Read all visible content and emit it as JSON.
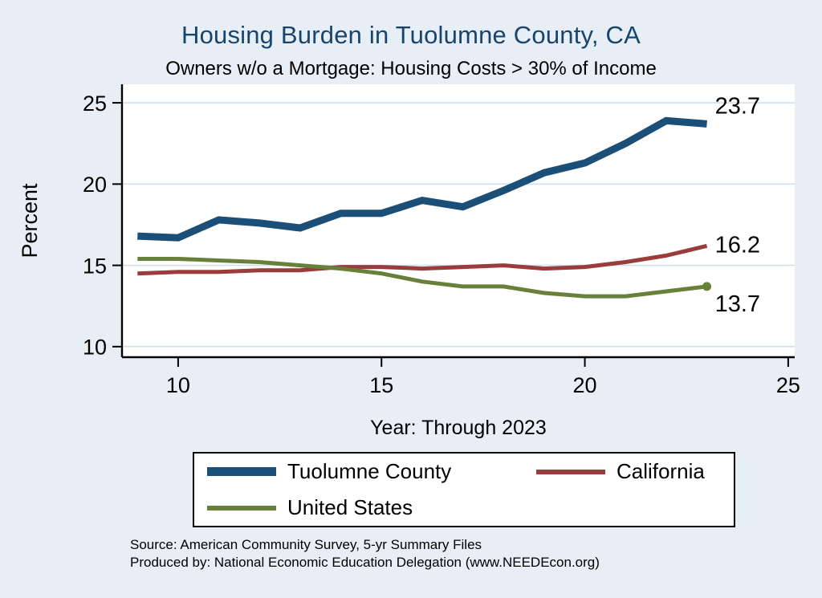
{
  "title": "Housing Burden in Tuolumne County, CA",
  "subtitle": "Owners w/o a Mortgage: Housing Costs > 30% of Income",
  "xlabel": "Year: Through 2023",
  "ylabel": "Percent",
  "notes": {
    "source_line": "Source: American Community Survey, 5-yr Summary Files",
    "produced_line": "Produced by: National Economic Education Delegation (www.NEEDEcon.org)"
  },
  "colors": {
    "title": "#17456e",
    "tuolumne": "#1b4f78",
    "california": "#9a3c3c",
    "united_states": "#67803a",
    "gridline": "#cfe0ed",
    "axis": "#000000",
    "plot_background": "#ffffff",
    "page_background": "#e7eef5"
  },
  "chart_data": {
    "type": "line",
    "x": [
      9,
      10,
      11,
      12,
      13,
      14,
      15,
      16,
      17,
      18,
      19,
      20,
      21,
      22,
      23
    ],
    "series": [
      {
        "name": "Tuolumne County",
        "color": "#1b4f78",
        "width": 9,
        "values": [
          16.8,
          16.7,
          17.8,
          17.6,
          17.3,
          18.2,
          18.2,
          19.0,
          18.6,
          19.6,
          20.7,
          21.3,
          22.5,
          23.9,
          23.7
        ],
        "end_label": "23.7",
        "label_dy": -13,
        "end_marker": false
      },
      {
        "name": "California",
        "color": "#9a3c3c",
        "width": 5,
        "values": [
          14.5,
          14.6,
          14.6,
          14.7,
          14.7,
          14.9,
          14.9,
          14.8,
          14.9,
          15.0,
          14.8,
          14.9,
          15.2,
          15.6,
          16.2
        ],
        "end_label": "16.2",
        "label_dy": 8,
        "end_marker": false
      },
      {
        "name": "United States",
        "color": "#67803a",
        "width": 5,
        "values": [
          15.4,
          15.4,
          15.3,
          15.2,
          15.0,
          14.8,
          14.5,
          14.0,
          13.7,
          13.7,
          13.3,
          13.1,
          13.1,
          13.4,
          13.7
        ],
        "end_label": "13.7",
        "label_dy": 31,
        "end_marker": true
      }
    ],
    "x_ticks": [
      10,
      15,
      20,
      25
    ],
    "y_ticks": [
      10,
      15,
      20,
      25
    ],
    "xlim": [
      8.62,
      25.16
    ],
    "ylim": [
      9.35,
      26.14
    ],
    "grid": "horizontal",
    "legend_position": "bottom",
    "title": "Housing Burden in Tuolumne County, CA",
    "xlabel": "Year: Through 2023",
    "ylabel": "Percent"
  }
}
